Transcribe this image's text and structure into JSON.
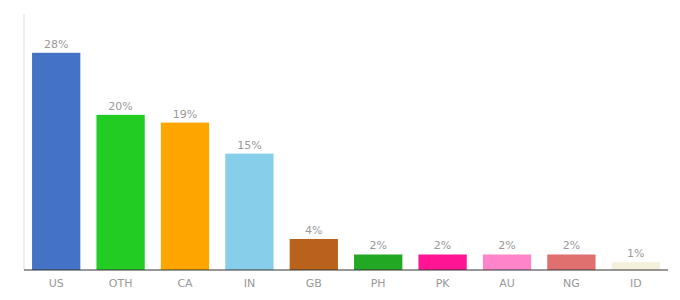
{
  "chart_data": {
    "type": "bar",
    "categories": [
      "US",
      "OTH",
      "CA",
      "IN",
      "GB",
      "PH",
      "PK",
      "AU",
      "NG",
      "ID"
    ],
    "values": [
      28,
      20,
      19,
      15,
      4,
      2,
      2,
      2,
      2,
      1
    ],
    "value_labels": [
      "28%",
      "20%",
      "19%",
      "15%",
      "4%",
      "2%",
      "2%",
      "2%",
      "2%",
      "1%"
    ],
    "colors": [
      "#4472C4",
      "#22CC22",
      "#FFA500",
      "#87CEEB",
      "#B8621B",
      "#22A822",
      "#FF1493",
      "#FF85C8",
      "#E07070",
      "#F5F0DC"
    ],
    "ylim": [
      0,
      33
    ],
    "data_labels": true,
    "tick_labels": "x",
    "grid": false
  }
}
